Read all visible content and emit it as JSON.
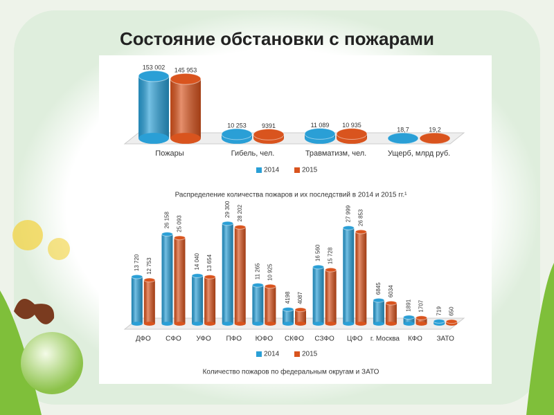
{
  "title": "Состояние обстановки с пожарами",
  "chart_data": [
    {
      "type": "bar",
      "title": "Распределение количества пожаров и их последствий в 2014 и 2015 гг.¹",
      "categories": [
        "Пожары",
        "Гибель, чел.",
        "Травматизм, чел.",
        "Ущерб, млрд руб."
      ],
      "series": [
        {
          "name": "2014",
          "color": "#2a9fd6",
          "values": [
            153002,
            10253,
            11089,
            18.7
          ],
          "value_labels": [
            "153 002",
            "10 253",
            "11 089",
            "18,7"
          ]
        },
        {
          "name": "2015",
          "color": "#d9541e",
          "values": [
            145953,
            9391,
            10935,
            19.2
          ],
          "value_labels": [
            "145 953",
            "9391",
            "10 935",
            "19,2"
          ]
        }
      ]
    },
    {
      "type": "bar",
      "title": "Количество пожаров по федеральным округам и ЗАТО",
      "categories": [
        "ДФО",
        "СФО",
        "УФО",
        "ПФО",
        "ЮФО",
        "СКФО",
        "СЗФО",
        "ЦФО",
        "г. Москва",
        "КФО",
        "ЗАТО"
      ],
      "series": [
        {
          "name": "2014",
          "color": "#2a9fd6",
          "values": [
            13720,
            26158,
            14040,
            29300,
            11265,
            4198,
            16560,
            27999,
            6845,
            1891,
            719
          ],
          "value_labels": [
            "13 720",
            "26 158",
            "14 040",
            "29 300",
            "11 265",
            "4198",
            "16 560",
            "27 999",
            "6845",
            "1891",
            "719"
          ]
        },
        {
          "name": "2015",
          "color": "#d9541e",
          "values": [
            12753,
            25093,
            13654,
            28202,
            10925,
            4087,
            15728,
            26853,
            6034,
            1707,
            650
          ],
          "value_labels": [
            "12 753",
            "25 093",
            "13 654",
            "28 202",
            "10 925",
            "4087",
            "15 728",
            "26 853",
            "6034",
            "1707",
            "650"
          ]
        }
      ]
    }
  ]
}
